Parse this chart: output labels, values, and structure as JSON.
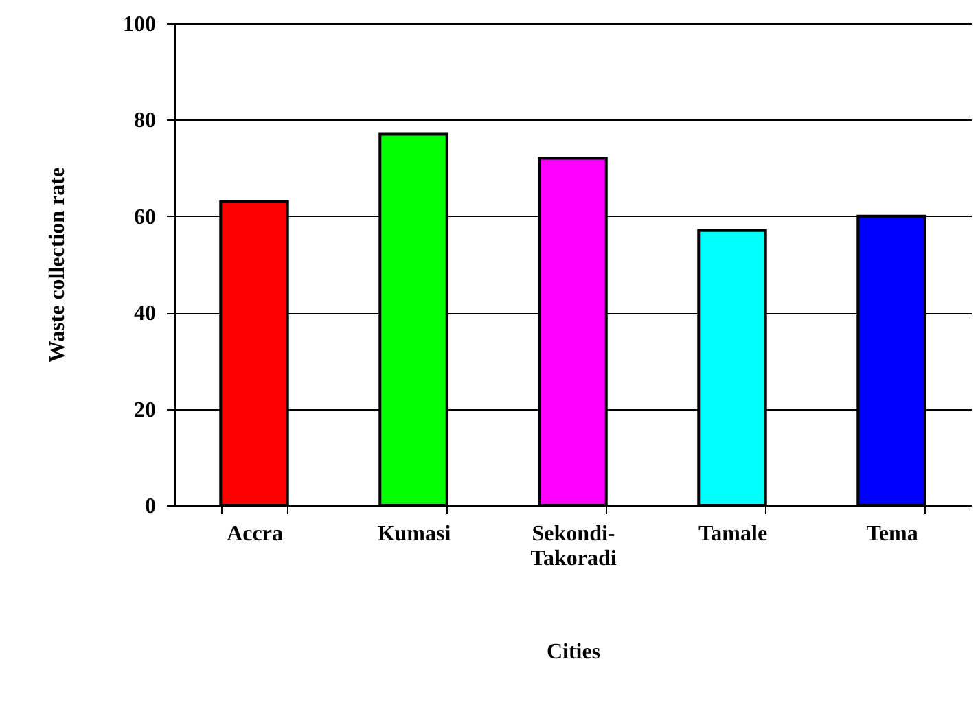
{
  "chart_data": {
    "type": "bar",
    "xlabel": "Cities",
    "ylabel": "Waste collection rate",
    "categories": [
      "Accra",
      "Kumasi",
      "Sekondi-Takoradi",
      "Tamale",
      "Tema"
    ],
    "values": [
      63,
      77,
      72,
      57,
      60
    ],
    "colors": [
      "#ff0000",
      "#00ff00",
      "#ff00ff",
      "#00ffff",
      "#0000ff"
    ],
    "ylim": [
      0,
      100
    ],
    "yticks": [
      0,
      20,
      40,
      60,
      80,
      100
    ],
    "grid": "y"
  }
}
